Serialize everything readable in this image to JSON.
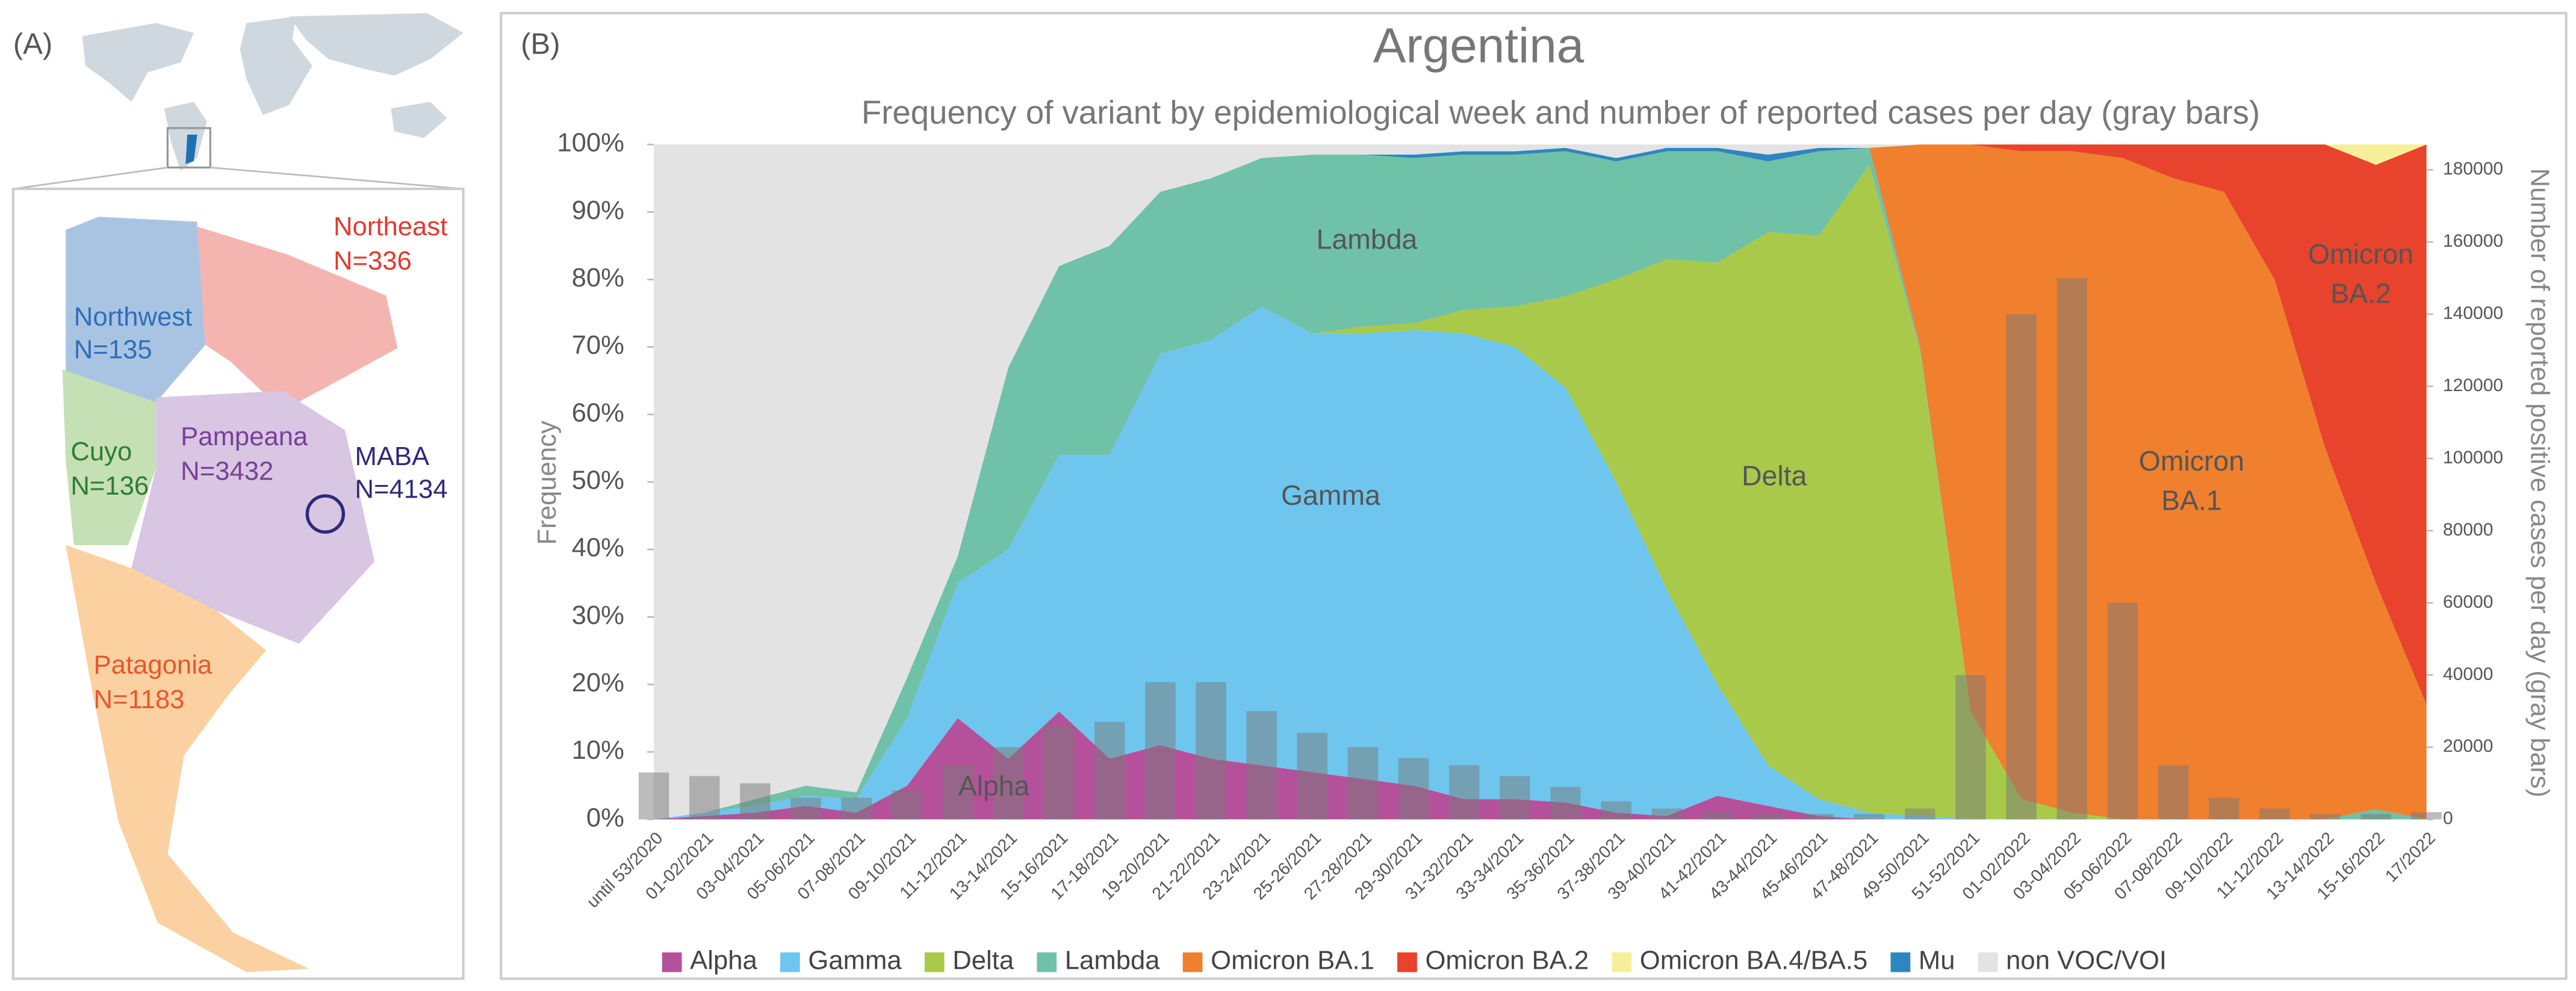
{
  "panels": [
    "(A)",
    "(B)"
  ],
  "map": {
    "regions": [
      {
        "name": "Northeast",
        "n": "N=336"
      },
      {
        "name": "Northwest",
        "n": "N=135"
      },
      {
        "name": "Cuyo",
        "n": "N=136"
      },
      {
        "name": "Pampeana",
        "n": "N=3432"
      },
      {
        "name": "MABA",
        "n": "N=4134"
      },
      {
        "name": "Patagonia",
        "n": "N=1183"
      }
    ]
  },
  "chart_data": {
    "type": "stacked_area",
    "title": "Argentina",
    "subtitle": "Frequency of variant by epidemiological week and number of reported cases per day (gray bars)",
    "y_label": "Frequency",
    "y2_label": "Number of reported positive cases per day (gray bars)",
    "categories": [
      "until 53/2020",
      "01-02/2021",
      "03-04/2021",
      "05-06/2021",
      "07-08/2021",
      "09-10/2021",
      "11-12/2021",
      "13-14/2021",
      "15-16/2021",
      "17-18/2021",
      "19-20/2021",
      "21-22/2021",
      "23-24/2021",
      "25-26/2021",
      "27-28/2021",
      "29-30/2021",
      "31-32/2021",
      "33-34/2021",
      "35-36/2021",
      "37-38/2021",
      "39-40/2021",
      "41-42/2021",
      "43-44/2021",
      "45-46/2021",
      "47-48/2021",
      "49-50/2021",
      "51-52/2021",
      "01-02/2022",
      "03-04/2022",
      "05-06/2022",
      "07-08/2022",
      "09-10/2022",
      "11-12/2022",
      "13-14/2022",
      "15-16/2022",
      "17/2022"
    ],
    "ylim": [
      0,
      100
    ],
    "yticks": [
      {
        "value": 0,
        "label": "0%"
      },
      {
        "value": 10,
        "label": "10%"
      },
      {
        "value": 20,
        "label": "20%"
      },
      {
        "value": 30,
        "label": "30%"
      },
      {
        "value": 40,
        "label": "40%"
      },
      {
        "value": 50,
        "label": "50%"
      },
      {
        "value": 60,
        "label": "60%"
      },
      {
        "value": 70,
        "label": "70%"
      },
      {
        "value": 80,
        "label": "80%"
      },
      {
        "value": 90,
        "label": "90%"
      },
      {
        "value": 100,
        "label": "100%"
      }
    ],
    "y2lim": [
      0,
      187000
    ],
    "y2ticks": [
      0,
      20000,
      40000,
      60000,
      80000,
      100000,
      120000,
      140000,
      160000,
      180000
    ],
    "grid": false,
    "legend": "bottom",
    "series": [
      {
        "name": "Alpha",
        "color": "#b5519b",
        "values": [
          0,
          0.5,
          1,
          2,
          1,
          5,
          15,
          9,
          16,
          9,
          11,
          9,
          8,
          7,
          6,
          5,
          3,
          3,
          2.5,
          1,
          0.5,
          3.5,
          2,
          0.5,
          0,
          0,
          0,
          0,
          0,
          0,
          0,
          0,
          0,
          0,
          0,
          0
        ]
      },
      {
        "name": "Gamma",
        "color": "#6ec6ef",
        "values": [
          0,
          0.5,
          1,
          1.5,
          2,
          10,
          20,
          31,
          38,
          45,
          58,
          62,
          68,
          65,
          66,
          67.5,
          69,
          67,
          61.5,
          49,
          33.5,
          16.5,
          6,
          2.5,
          1,
          0.5,
          0,
          0,
          0,
          0,
          0,
          0,
          0,
          0,
          0,
          0
        ]
      },
      {
        "name": "Delta",
        "color": "#a8c94a",
        "values": [
          0,
          0,
          0,
          0,
          0,
          0,
          0,
          0,
          0,
          0,
          0,
          0,
          0,
          0,
          1,
          1,
          3.5,
          6,
          13.5,
          30,
          49,
          62.5,
          79,
          83.5,
          96,
          69,
          16,
          3,
          1,
          0,
          0,
          0,
          0,
          0,
          0,
          0
        ]
      },
      {
        "name": "Lambda",
        "color": "#6fc1a8",
        "values": [
          0,
          0,
          1,
          1.5,
          1,
          6,
          4,
          27,
          28,
          31,
          24,
          24,
          22,
          26.5,
          25.5,
          24.5,
          23,
          22.5,
          21.5,
          17.5,
          16,
          16.5,
          10.5,
          12.5,
          2.5,
          0.5,
          0,
          0,
          0,
          0,
          0,
          0,
          0,
          0,
          1.5,
          0
        ]
      },
      {
        "name": "Omicron BA.1",
        "color": "#f07f2e",
        "values": [
          0,
          0,
          0,
          0,
          0,
          0,
          0,
          0,
          0,
          0,
          0,
          0,
          0,
          0,
          0,
          0,
          0,
          0,
          0,
          0,
          0,
          0,
          0,
          0,
          0,
          30,
          84,
          96,
          98,
          98,
          95,
          93,
          80,
          55,
          33.5,
          17
        ]
      },
      {
        "name": "Omicron BA.2",
        "color": "#e8432c",
        "values": [
          0,
          0,
          0,
          0,
          0,
          0,
          0,
          0,
          0,
          0,
          0,
          0,
          0,
          0,
          0,
          0,
          0,
          0,
          0,
          0,
          0,
          0,
          0,
          0,
          0,
          0,
          0,
          1,
          1,
          2,
          5,
          7,
          20,
          45,
          62,
          83
        ]
      },
      {
        "name": "Omicron BA.4/BA.5",
        "color": "#f5ef9a",
        "values": [
          0,
          0,
          0,
          0,
          0,
          0,
          0,
          0,
          0,
          0,
          0,
          0,
          0,
          0,
          0,
          0,
          0,
          0,
          0,
          0,
          0,
          0,
          0,
          0,
          0,
          0,
          0,
          0,
          0,
          0,
          0,
          0,
          0,
          0,
          3,
          0
        ]
      },
      {
        "name": "Mu",
        "color": "#2e86c1",
        "values": [
          0,
          0,
          0,
          0,
          0,
          0,
          0,
          0,
          0,
          0,
          0,
          0,
          0,
          0,
          0,
          0.5,
          0.5,
          0.5,
          0.5,
          0.5,
          0.5,
          0.5,
          1,
          0.5,
          0,
          0,
          0,
          0,
          0,
          0,
          0,
          0,
          0,
          0,
          0,
          0
        ]
      },
      {
        "name": "non VOC/VOI",
        "color": "#e3e3e3",
        "values": [
          100,
          99,
          97,
          95,
          96,
          79,
          61,
          33,
          18,
          15,
          7,
          5,
          2,
          1.5,
          1.5,
          1.5,
          1,
          1,
          0.5,
          2,
          0.5,
          0.5,
          1.5,
          0.5,
          0.5,
          0,
          0,
          0,
          0,
          0,
          0,
          0,
          0,
          0,
          0,
          0
        ]
      }
    ],
    "cases": {
      "axis": "y2",
      "color": "#7a7a7a",
      "values": [
        13000,
        12000,
        10000,
        6000,
        6000,
        8000,
        15000,
        20000,
        26000,
        27000,
        38000,
        38000,
        30000,
        24000,
        20000,
        17000,
        15000,
        12000,
        9000,
        5000,
        3000,
        2000,
        1500,
        1500,
        1500,
        3000,
        40000,
        140000,
        150000,
        60000,
        15000,
        6000,
        3000,
        1500,
        1500,
        2000
      ]
    },
    "annotations": [
      [
        "Lambda"
      ],
      [
        "Gamma"
      ],
      [
        "Delta"
      ],
      [
        "Alpha"
      ],
      [
        "Omicron",
        "BA.1"
      ],
      [
        "Omicron",
        "BA.2"
      ]
    ]
  }
}
